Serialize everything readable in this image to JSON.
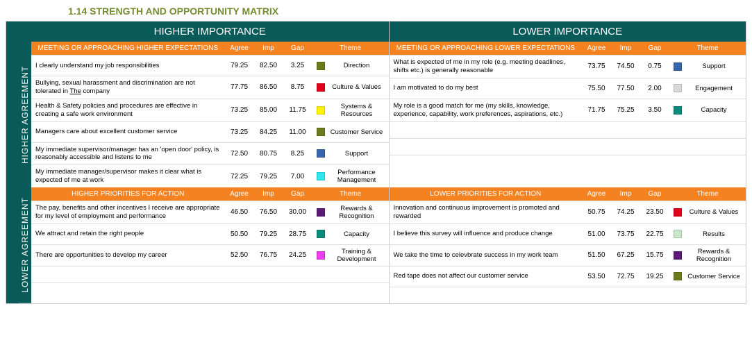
{
  "page_title": "1.14 STRENGTH AND OPPORTUNITY MATRIX",
  "colors": {
    "teal": "#0a5a5a",
    "orange": "#f58220",
    "olive": "#758c33"
  },
  "theme_colors": {
    "Direction": "#6b7a1a",
    "Culture & Values": "#e3001b",
    "Systems & Resources": "#fff200",
    "Customer Service": "#6b7a1a",
    "Support": "#3a63ad",
    "Performance Management": "#2fe6f0",
    "Rewards & Recognition": "#5a1a78",
    "Capacity": "#0a8a7a",
    "Training & Development": "#ea3ef0",
    "Engagement": "#d9d9d9",
    "Results": "#c9e8c9"
  },
  "importance_headers": {
    "higher": "HIGHER IMPORTANCE",
    "lower": "LOWER IMPORTANCE"
  },
  "agreement_labels": {
    "higher": "HIGHER AGREEMENT",
    "lower": "LOWER AGREEMENT"
  },
  "col_headers": {
    "agree": "Agree",
    "imp": "Imp",
    "gap": "Gap",
    "theme": "Theme"
  },
  "quadrants": {
    "top_left": {
      "label": "MEETING OR APPROACHING HIGHER EXPECTATIONS",
      "rows": [
        {
          "text": "I clearly understand my job responsibilities",
          "agree": "79.25",
          "imp": "82.50",
          "gap": "3.25",
          "theme": "Direction"
        },
        {
          "text": "Bullying, sexual harassment and discrimination are not tolerated in The company",
          "agree": "77.75",
          "imp": "86.50",
          "gap": "8.75",
          "theme": "Culture & Values",
          "underline_word": "The"
        },
        {
          "text": "Health & Safety policies and procedures are effective in creating a safe work environment",
          "agree": "73.25",
          "imp": "85.00",
          "gap": "11.75",
          "theme": "Systems & Resources"
        },
        {
          "text": "Managers care about excellent customer service",
          "agree": "73.25",
          "imp": "84.25",
          "gap": "11.00",
          "theme": "Customer Service"
        },
        {
          "text": "My immediate supervisor/manager has an 'open door' policy, is reasonably accessible and listens to me",
          "agree": "72.50",
          "imp": "80.75",
          "gap": "8.25",
          "theme": "Support"
        },
        {
          "text": "My immediate manager/supervisor makes it clear what is expected of me at work",
          "agree": "72.25",
          "imp": "79.25",
          "gap": "7.00",
          "theme": "Performance Management"
        }
      ]
    },
    "top_right": {
      "label": "MEETING OR APPROACHING LOWER EXPECTATIONS",
      "rows": [
        {
          "text": "What is expected of me in my role (e.g. meeting deadlines, shifts etc.) is generally reasonable",
          "agree": "73.75",
          "imp": "74.50",
          "gap": "0.75",
          "theme": "Support"
        },
        {
          "text": "I am motivated to do my best",
          "agree": "75.50",
          "imp": "77.50",
          "gap": "2.00",
          "theme": "Engagement"
        },
        {
          "text": "My role is a good match for me (my skills, knowledge, experience, capability, work preferences, aspirations, etc.)",
          "agree": "71.75",
          "imp": "75.25",
          "gap": "3.50",
          "theme": "Capacity"
        }
      ],
      "empty_rows": 3
    },
    "bottom_left": {
      "label": "HIGHER PRIORITIES FOR ACTION",
      "rows": [
        {
          "text": "The pay, benefits and other incentives I receive are appropriate for my level of employment and performance",
          "agree": "46.50",
          "imp": "76.50",
          "gap": "30.00",
          "theme": "Rewards & Recognition"
        },
        {
          "text": "We attract and retain the right people",
          "agree": "50.50",
          "imp": "79.25",
          "gap": "28.75",
          "theme": "Capacity"
        },
        {
          "text": "There are opportunities to develop my career",
          "agree": "52.50",
          "imp": "76.75",
          "gap": "24.25",
          "theme": "Training & Development"
        }
      ],
      "empty_rows": 2
    },
    "bottom_right": {
      "label": "LOWER PRIORITIES FOR ACTION",
      "rows": [
        {
          "text": "Innovation and continuous improvement is promoted and rewarded",
          "agree": "50.75",
          "imp": "74.25",
          "gap": "23.50",
          "theme": "Culture & Values"
        },
        {
          "text": "I believe this survey will influence and produce change",
          "agree": "51.00",
          "imp": "73.75",
          "gap": "22.75",
          "theme": "Results"
        },
        {
          "text": "We take the time to celevbrate success in my work team",
          "agree": "51.50",
          "imp": "67.25",
          "gap": "15.75",
          "theme": "Rewards & Recognition"
        },
        {
          "text": "Red tape does not affect our customer service",
          "agree": "53.50",
          "imp": "72.75",
          "gap": "19.25",
          "theme": "Customer Service"
        }
      ],
      "empty_rows": 1
    }
  }
}
